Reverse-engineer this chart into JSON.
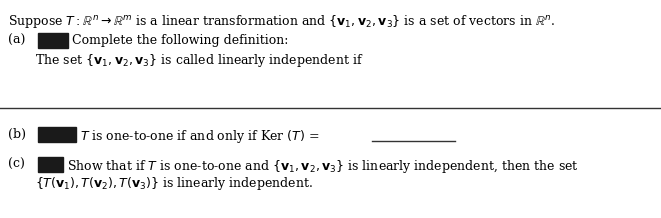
{
  "figsize": [
    6.61,
    2.18
  ],
  "dpi": 100,
  "bg_color": "#ffffff",
  "text_color": "#000000",
  "line1": "Suppose $T : \\mathbb{R}^n \\rightarrow \\mathbb{R}^m$ is a linear transformation and $\\{\\mathbf{v}_1, \\mathbf{v}_2, \\mathbf{v}_3\\}$ is a set of vectors in $\\mathbb{R}^n$.",
  "label_a": "(a)",
  "text_a": "Complete the following definition:",
  "text_a2": "The set $\\{\\mathbf{v}_1, \\mathbf{v}_2, \\mathbf{v}_3\\}$ is called linearly independent if",
  "label_b": "(b)",
  "text_b": "$T$ is one-to-one if and only if Ker $(T)$ =",
  "label_c": "(c)",
  "text_c1": "Show that if $T$ is one-to-one and $\\{\\mathbf{v}_1, \\mathbf{v}_2, \\mathbf{v}_3\\}$ is linearly independent, then the set",
  "text_c2": "$\\{T(\\mathbf{v}_1), T(\\mathbf{v}_2), T(\\mathbf{v}_3)\\}$ is linearly independent.",
  "box_color": "#1a1a1a",
  "font_size": 9.0,
  "line_color": "#333333",
  "underline_color": "#333333"
}
